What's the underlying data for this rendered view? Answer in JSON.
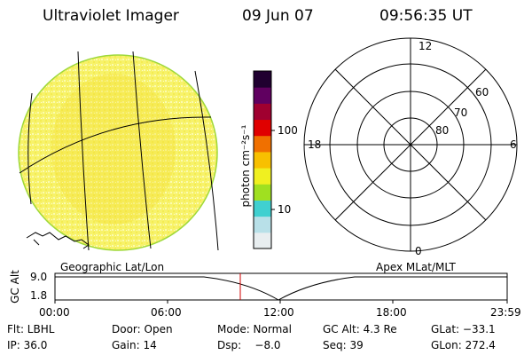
{
  "header": {
    "title": "Ultraviolet Imager",
    "date": "09 Jun 07",
    "time": "09:56:35 UT"
  },
  "colorbar": {
    "label": "photon cm⁻²s⁻¹",
    "ticks": [
      "100",
      "10"
    ],
    "colors": [
      "#e8eef0",
      "#b8e0e8",
      "#40d0d0",
      "#a0e020",
      "#f0f020",
      "#f8c000",
      "#f07000",
      "#e00000",
      "#a00030",
      "#600060",
      "#200030"
    ]
  },
  "polar_plot": {
    "mlt_labels": [
      "12",
      "6",
      "0",
      "18"
    ],
    "lat_labels": [
      "60",
      "70",
      "80"
    ]
  },
  "strip": {
    "left_label": "Geographic Lat/Lon",
    "right_label": "Apex MLat/MLT",
    "axis_label": "GC Alt",
    "yticks": [
      "9.0",
      "1.8"
    ],
    "xticks": [
      "00:00",
      "06:00",
      "12:00",
      "18:00",
      "23:59"
    ],
    "current_time_marker": "09:56"
  },
  "footer": {
    "flt": "Flt: LBHL",
    "door": "Door: Open",
    "mode": "Mode: Normal",
    "gc_alt": "GC Alt: 4.3 Re",
    "glat": "GLat: −33.1",
    "ip": "IP: 36.0",
    "gain": "Gain: 14",
    "dsp": "Dsp:    −8.0",
    "seq": "Seq: 39",
    "glon": "GLon: 272.4"
  }
}
